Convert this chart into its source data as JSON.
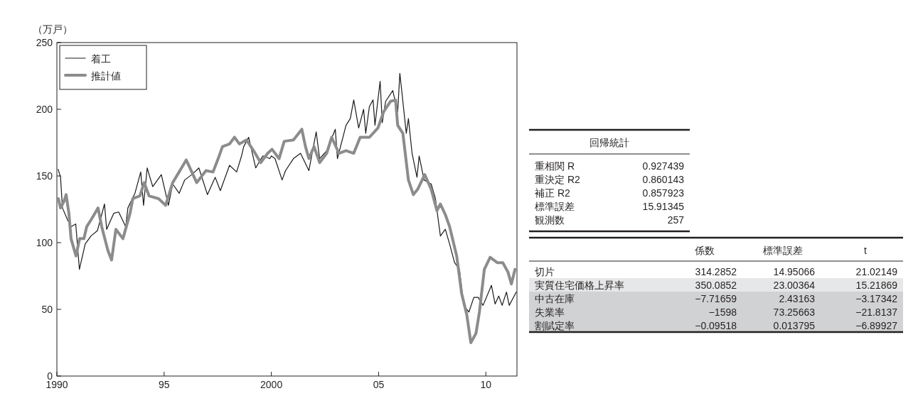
{
  "chart_data": [
    {
      "type": "line",
      "ylabel": "（万戸）",
      "xlim": [
        1990,
        2011.45
      ],
      "ylim": [
        0,
        250
      ],
      "xticks": [
        {
          "value": 1990,
          "label": "1990"
        },
        {
          "value": 1995,
          "label": "95"
        },
        {
          "value": 2000,
          "label": "2000"
        },
        {
          "value": 2005,
          "label": "05"
        },
        {
          "value": 2010,
          "label": "10"
        }
      ],
      "yticks": [
        0,
        50,
        100,
        150,
        200,
        250
      ],
      "legend": "top left",
      "grid": false,
      "series": [
        {
          "name": "着工",
          "color": "#1a1a1a",
          "x": [
            1990.06,
            1990.17,
            1990.26,
            1990.5,
            1990.66,
            1990.88,
            1991.05,
            1991.22,
            1991.32,
            1991.59,
            1991.89,
            1992.22,
            1992.32,
            1992.65,
            1992.88,
            1993.21,
            1993.31,
            1993.64,
            1993.91,
            1994.04,
            1994.21,
            1994.3,
            1994.47,
            1994.87,
            1995.2,
            1995.4,
            1995.7,
            1995.96,
            1996.29,
            1996.62,
            1997.02,
            1997.38,
            1997.62,
            1998.05,
            1998.38,
            1998.61,
            1998.71,
            1998.94,
            1999.27,
            1999.6,
            1999.93,
            2000.0,
            2000.17,
            2000.5,
            2000.66,
            2001.03,
            2001.36,
            2001.75,
            2002.09,
            2002.25,
            2002.58,
            2002.98,
            2003.08,
            2003.48,
            2003.68,
            2003.84,
            2004.07,
            2004.3,
            2004.4,
            2004.57,
            2004.74,
            2004.83,
            2005.07,
            2005.17,
            2005.33,
            2005.66,
            2005.89,
            2005.99,
            2006.29,
            2006.39,
            2006.56,
            2006.79,
            2006.89,
            2007.12,
            2007.45,
            2007.65,
            2007.88,
            2008.11,
            2008.31,
            2008.54,
            2008.77,
            2008.97,
            2009.21,
            2009.44,
            2009.64,
            2009.87,
            2010.26,
            2010.43,
            2010.6,
            2010.76,
            2010.96,
            2011.09,
            2011.42
          ],
          "values": [
            155,
            149,
            126,
            117,
            112,
            114,
            80,
            92,
            99,
            105,
            109,
            129,
            110,
            122,
            123,
            112,
            126,
            137,
            153,
            128,
            156,
            151,
            142,
            151,
            128,
            144,
            137,
            147,
            151,
            156,
            136,
            149,
            139,
            158,
            153,
            165,
            172,
            179,
            156,
            165,
            163,
            165,
            163,
            147,
            154,
            163,
            167,
            154,
            183,
            163,
            169,
            185,
            163,
            188,
            193,
            207,
            186,
            200,
            182,
            202,
            207,
            188,
            221,
            190,
            206,
            214,
            198,
            227,
            182,
            193,
            167,
            149,
            165,
            147,
            144,
            133,
            105,
            110,
            99,
            85,
            80,
            53,
            48,
            59,
            59,
            53,
            68,
            54,
            60,
            53,
            63,
            53,
            63
          ]
        },
        {
          "name": "推計値",
          "color": "#8c8c8c",
          "x": [
            1990.07,
            1990.17,
            1990.33,
            1990.43,
            1990.56,
            1990.66,
            1990.89,
            1991.06,
            1991.26,
            1991.39,
            1991.59,
            1991.92,
            1992.09,
            1992.38,
            1992.55,
            1992.75,
            1993.08,
            1993.41,
            1993.54,
            1993.87,
            1994.07,
            1994.3,
            1994.74,
            1995.07,
            1995.4,
            1995.7,
            1996.03,
            1996.52,
            1996.95,
            1997.28,
            1997.52,
            1997.72,
            1998.05,
            1998.28,
            1998.51,
            1998.84,
            1999.17,
            1999.5,
            1999.83,
            2000.03,
            2000.36,
            2000.6,
            2001.03,
            2001.42,
            2001.59,
            2001.75,
            2001.99,
            2002.25,
            2002.58,
            2002.81,
            2003.15,
            2003.48,
            2003.84,
            2004.14,
            2004.57,
            2004.97,
            2005.23,
            2005.56,
            2005.79,
            2005.89,
            2006.13,
            2006.39,
            2006.62,
            2006.82,
            2007.15,
            2007.45,
            2007.72,
            2007.88,
            2008.11,
            2008.31,
            2008.64,
            2008.87,
            2009.11,
            2009.3,
            2009.54,
            2009.7,
            2009.93,
            2010.2,
            2010.53,
            2010.79,
            2011.03,
            2011.19,
            2011.36
          ],
          "values": [
            133,
            126,
            131,
            136,
            122,
            103,
            90,
            103,
            103,
            112,
            117,
            126,
            112,
            94,
            87,
            110,
            103,
            122,
            133,
            135,
            145,
            135,
            133,
            128,
            145,
            153,
            162,
            145,
            154,
            153,
            163,
            172,
            174,
            179,
            174,
            177,
            169,
            160,
            167,
            170,
            163,
            176,
            177,
            185,
            172,
            163,
            172,
            160,
            167,
            179,
            167,
            169,
            167,
            179,
            179,
            186,
            198,
            206,
            207,
            188,
            182,
            147,
            136,
            140,
            151,
            140,
            124,
            129,
            121,
            112,
            90,
            62,
            46,
            25,
            32,
            48,
            80,
            89,
            85,
            85,
            78,
            69,
            80
          ]
        }
      ]
    },
    {
      "type": "other",
      "title": "回帰統計",
      "categories": [
        "重相関 R",
        "重決定 R2",
        "補正 R2",
        "標準誤差",
        "観測数"
      ],
      "values": [
        0.927439,
        0.860143,
        0.857923,
        15.91345,
        257
      ],
      "data_labels": true
    },
    {
      "type": "other",
      "categories": [
        "切片",
        "実質住宅価格上昇率",
        "中古在庫",
        "失業率",
        "割賦定率"
      ],
      "data_labels": true,
      "series": [
        {
          "name": "係数",
          "colors": [
            "#ffffff",
            "#e6e7e8",
            "#d1d2d4",
            "#d1d2d4",
            "#d1d2d4"
          ],
          "values": [
            314.2852,
            350.0852,
            -7.71659,
            -1598,
            -0.09518
          ]
        },
        {
          "name": "標準誤差",
          "colors": [
            "#ffffff",
            "#e6e7e8",
            "#d1d2d4",
            "#d1d2d4",
            "#d1d2d4"
          ],
          "values": [
            14.95066,
            23.00364,
            2.43163,
            73.25663,
            0.013795
          ]
        },
        {
          "name": "t",
          "colors": [
            "#ffffff",
            "#e6e7e8",
            "#d1d2d4",
            "#d1d2d4",
            "#d1d2d4"
          ],
          "values": [
            21.02149,
            15.21869,
            -3.17342,
            -21.8137,
            -6.89927
          ]
        }
      ]
    }
  ]
}
